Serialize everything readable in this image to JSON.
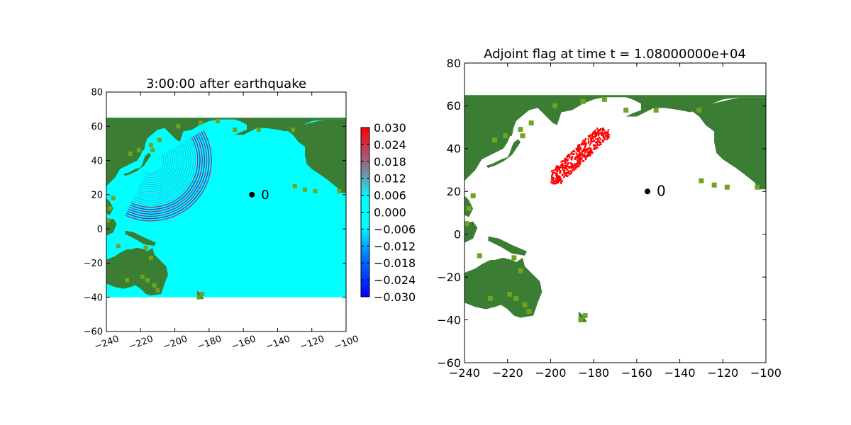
{
  "colors": {
    "land_dark": "#3a7d33",
    "land_light": "#6fa320",
    "ocean": "#00ffff",
    "flag": "#ff0000",
    "point": "#000000",
    "wave_pos": "#c01070",
    "wave_neg": "#1030d0"
  },
  "chart_data": [
    {
      "type": "heatmap",
      "title": "3:00:00 after earthquake",
      "xlabel": "",
      "ylabel": "",
      "xlim": [
        -240,
        -100
      ],
      "ylim": [
        -60,
        80
      ],
      "xticks": [
        "−240",
        "−220",
        "−200",
        "−180",
        "−160",
        "−140",
        "−120",
        "−100"
      ],
      "yticks": [
        "80",
        "60",
        "40",
        "20",
        "0",
        "−20",
        "−40",
        "−60"
      ],
      "xtick_values": [
        -240,
        -220,
        -200,
        -180,
        -160,
        -140,
        -120,
        -100
      ],
      "ytick_values": [
        80,
        60,
        40,
        20,
        0,
        -20,
        -40,
        -60
      ],
      "xtick_rotation_deg": -20,
      "domain_extent": {
        "lon": [
          -240,
          -100
        ],
        "lat": [
          -40,
          65
        ]
      },
      "point": {
        "x": -155,
        "y": 20,
        "label": "0"
      },
      "wave_front": {
        "center": [
          -214,
          40
        ],
        "lon_span": [
          -227,
          -186
        ],
        "lat_span": [
          24,
          58
        ]
      },
      "colorbar": {
        "colormap": "blue-cyan-red",
        "range": [
          -0.03,
          0.03
        ],
        "ticks": [
          "0.030",
          "0.024",
          "0.018",
          "0.012",
          "0.006",
          "0.000",
          "−0.006",
          "−0.012",
          "−0.018",
          "−0.024",
          "−0.030"
        ]
      },
      "grid": false
    },
    {
      "type": "heatmap",
      "title": "Adjoint flag at time t = 1.08000000e+04",
      "xlabel": "",
      "ylabel": "",
      "xlim": [
        -240,
        -100
      ],
      "ylim": [
        -60,
        80
      ],
      "xticks": [
        "−240",
        "−220",
        "−200",
        "−180",
        "−160",
        "−140",
        "−120",
        "−100"
      ],
      "yticks": [
        "80",
        "60",
        "40",
        "20",
        "0",
        "−20",
        "−40",
        "−60"
      ],
      "xtick_values": [
        -240,
        -220,
        -200,
        -180,
        -160,
        -140,
        -120,
        -100
      ],
      "ytick_values": [
        80,
        60,
        40,
        20,
        0,
        -20,
        -40,
        -60
      ],
      "point": {
        "x": -155,
        "y": 20,
        "label": "0"
      },
      "flag_region": {
        "lon_span": [
          -200,
          -173
        ],
        "lat_span": [
          24,
          50
        ]
      },
      "grid": false
    }
  ]
}
